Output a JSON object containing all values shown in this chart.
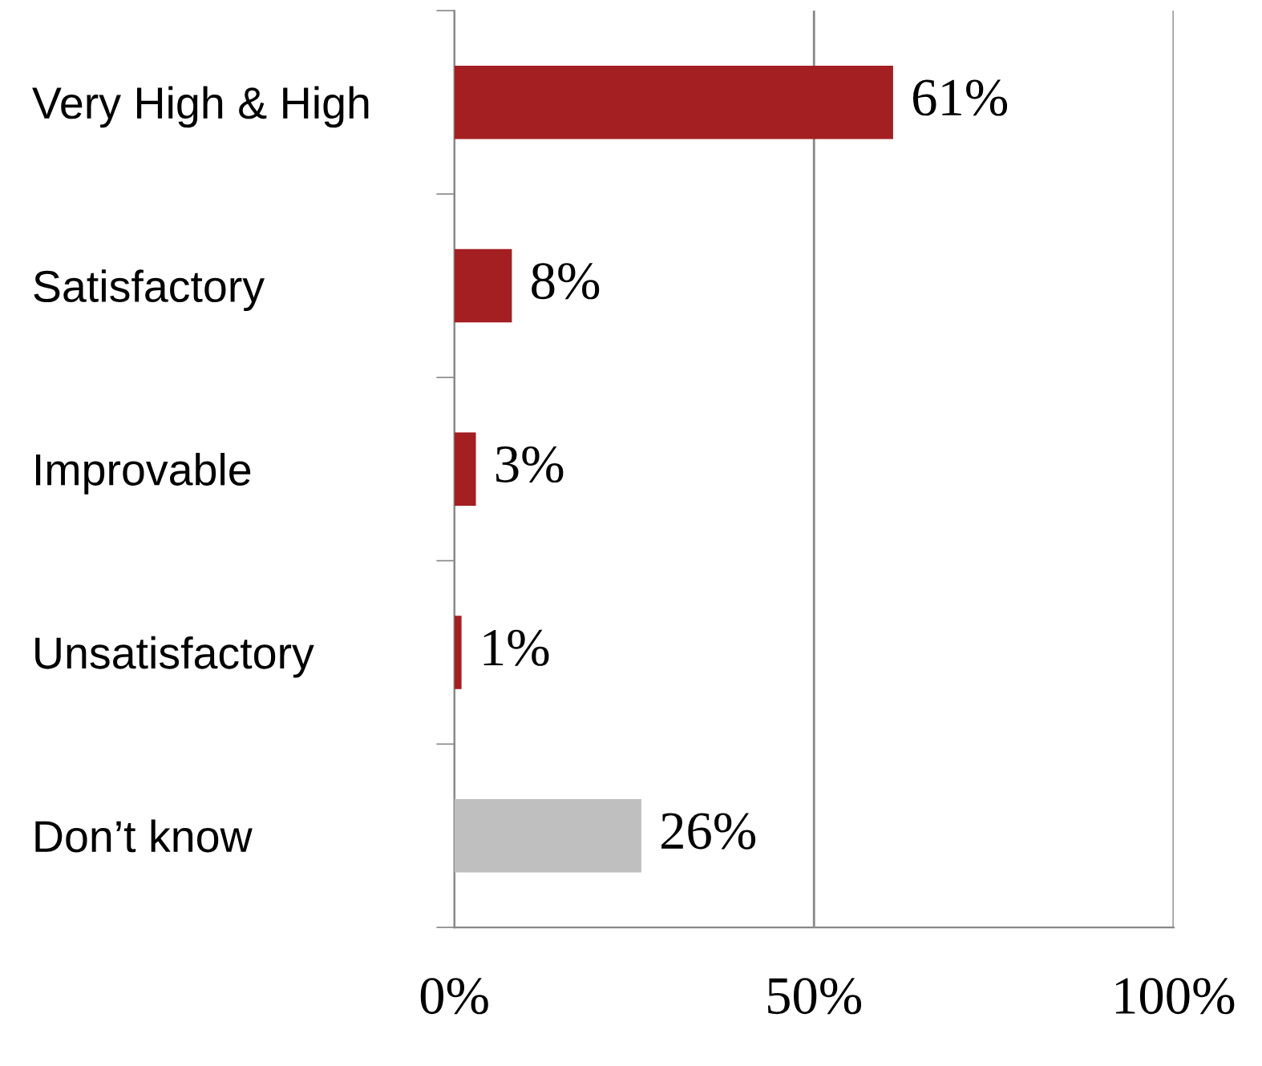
{
  "chart_data": {
    "type": "bar",
    "orientation": "horizontal",
    "categories": [
      "Very High & High",
      "Satisfactory",
      "Improvable",
      "Unsatisfactory",
      "Don’t know"
    ],
    "values": [
      61,
      8,
      3,
      1,
      26
    ],
    "colors": [
      "#a31f22",
      "#a31f22",
      "#a31f22",
      "#a31f22",
      "#bfbfbf"
    ],
    "value_labels": [
      "61%",
      "8%",
      "3%",
      "1%",
      "26%"
    ],
    "xlim": [
      0,
      100
    ],
    "xticks": [
      {
        "value": 0,
        "label": "0%"
      },
      {
        "value": 50,
        "label": "50%"
      },
      {
        "value": 100,
        "label": "100%"
      }
    ],
    "grid": "x",
    "legend": false
  }
}
